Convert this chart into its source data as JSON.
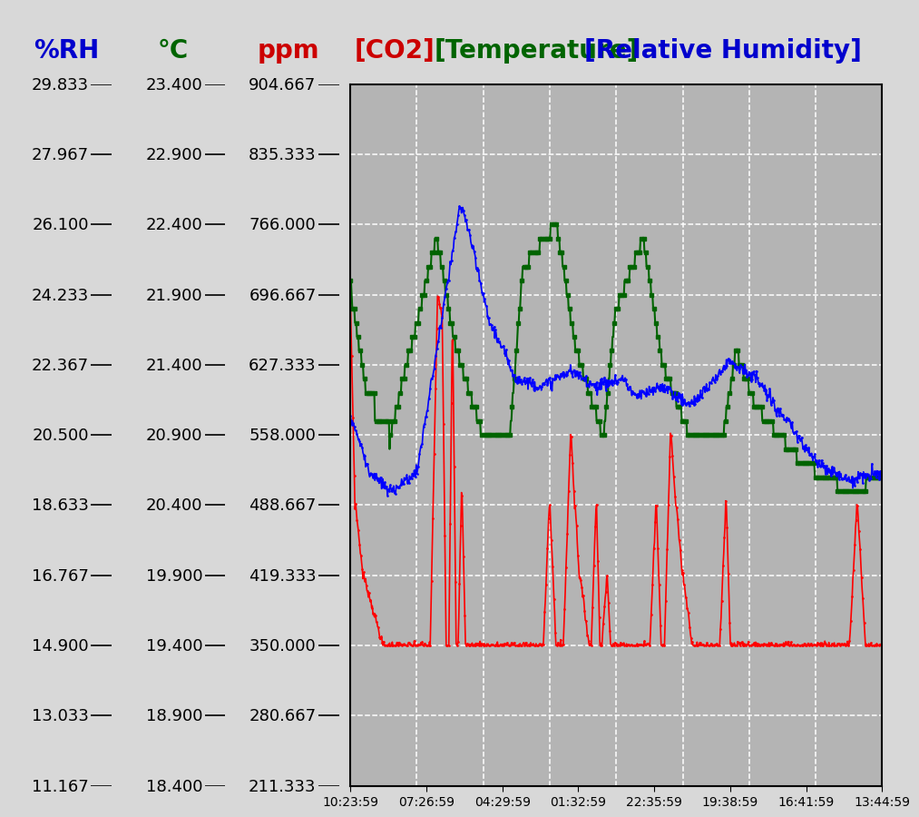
{
  "rh_ticks": [
    29.833,
    27.967,
    26.1,
    24.233,
    22.367,
    20.5,
    18.633,
    16.767,
    14.9,
    13.033,
    11.167
  ],
  "temp_ticks": [
    23.4,
    22.9,
    22.4,
    21.9,
    21.4,
    20.9,
    20.4,
    19.9,
    19.4,
    18.9,
    18.4
  ],
  "ppm_ticks": [
    904.667,
    835.333,
    766.0,
    696.667,
    627.333,
    558.0,
    488.667,
    419.333,
    350.0,
    280.667,
    211.333
  ],
  "rh_min": 11.167,
  "rh_max": 29.833,
  "temp_min": 18.4,
  "temp_max": 23.4,
  "ppm_min": 211.333,
  "ppm_max": 904.667,
  "x_labels": [
    "10:23:59",
    "07:26:59",
    "04:29:59",
    "01:32:59",
    "22:35:59",
    "19:38:59",
    "16:41:59",
    "13:44:59"
  ],
  "co2_color": "#FF0000",
  "temp_color": "#006400",
  "rh_color": "#0000FF",
  "plot_bg_color": "#B4B4B4",
  "outer_bg_color": "#D8D8D8",
  "label_rh": "%RH",
  "label_temp": "°C",
  "label_ppm": "ppm",
  "legend_co2": "[CO2]",
  "legend_temp": "[Temperature]",
  "legend_rh": "[Relative Humidity]",
  "rh_label_color": "#0000CD",
  "temp_label_color": "#006400",
  "ppm_label_color": "#CC0000",
  "legend_co2_color": "#CC0000",
  "legend_temp_color": "#006400",
  "legend_rh_color": "#0000CD",
  "header_fontsize": 20,
  "tick_fontsize": 13
}
